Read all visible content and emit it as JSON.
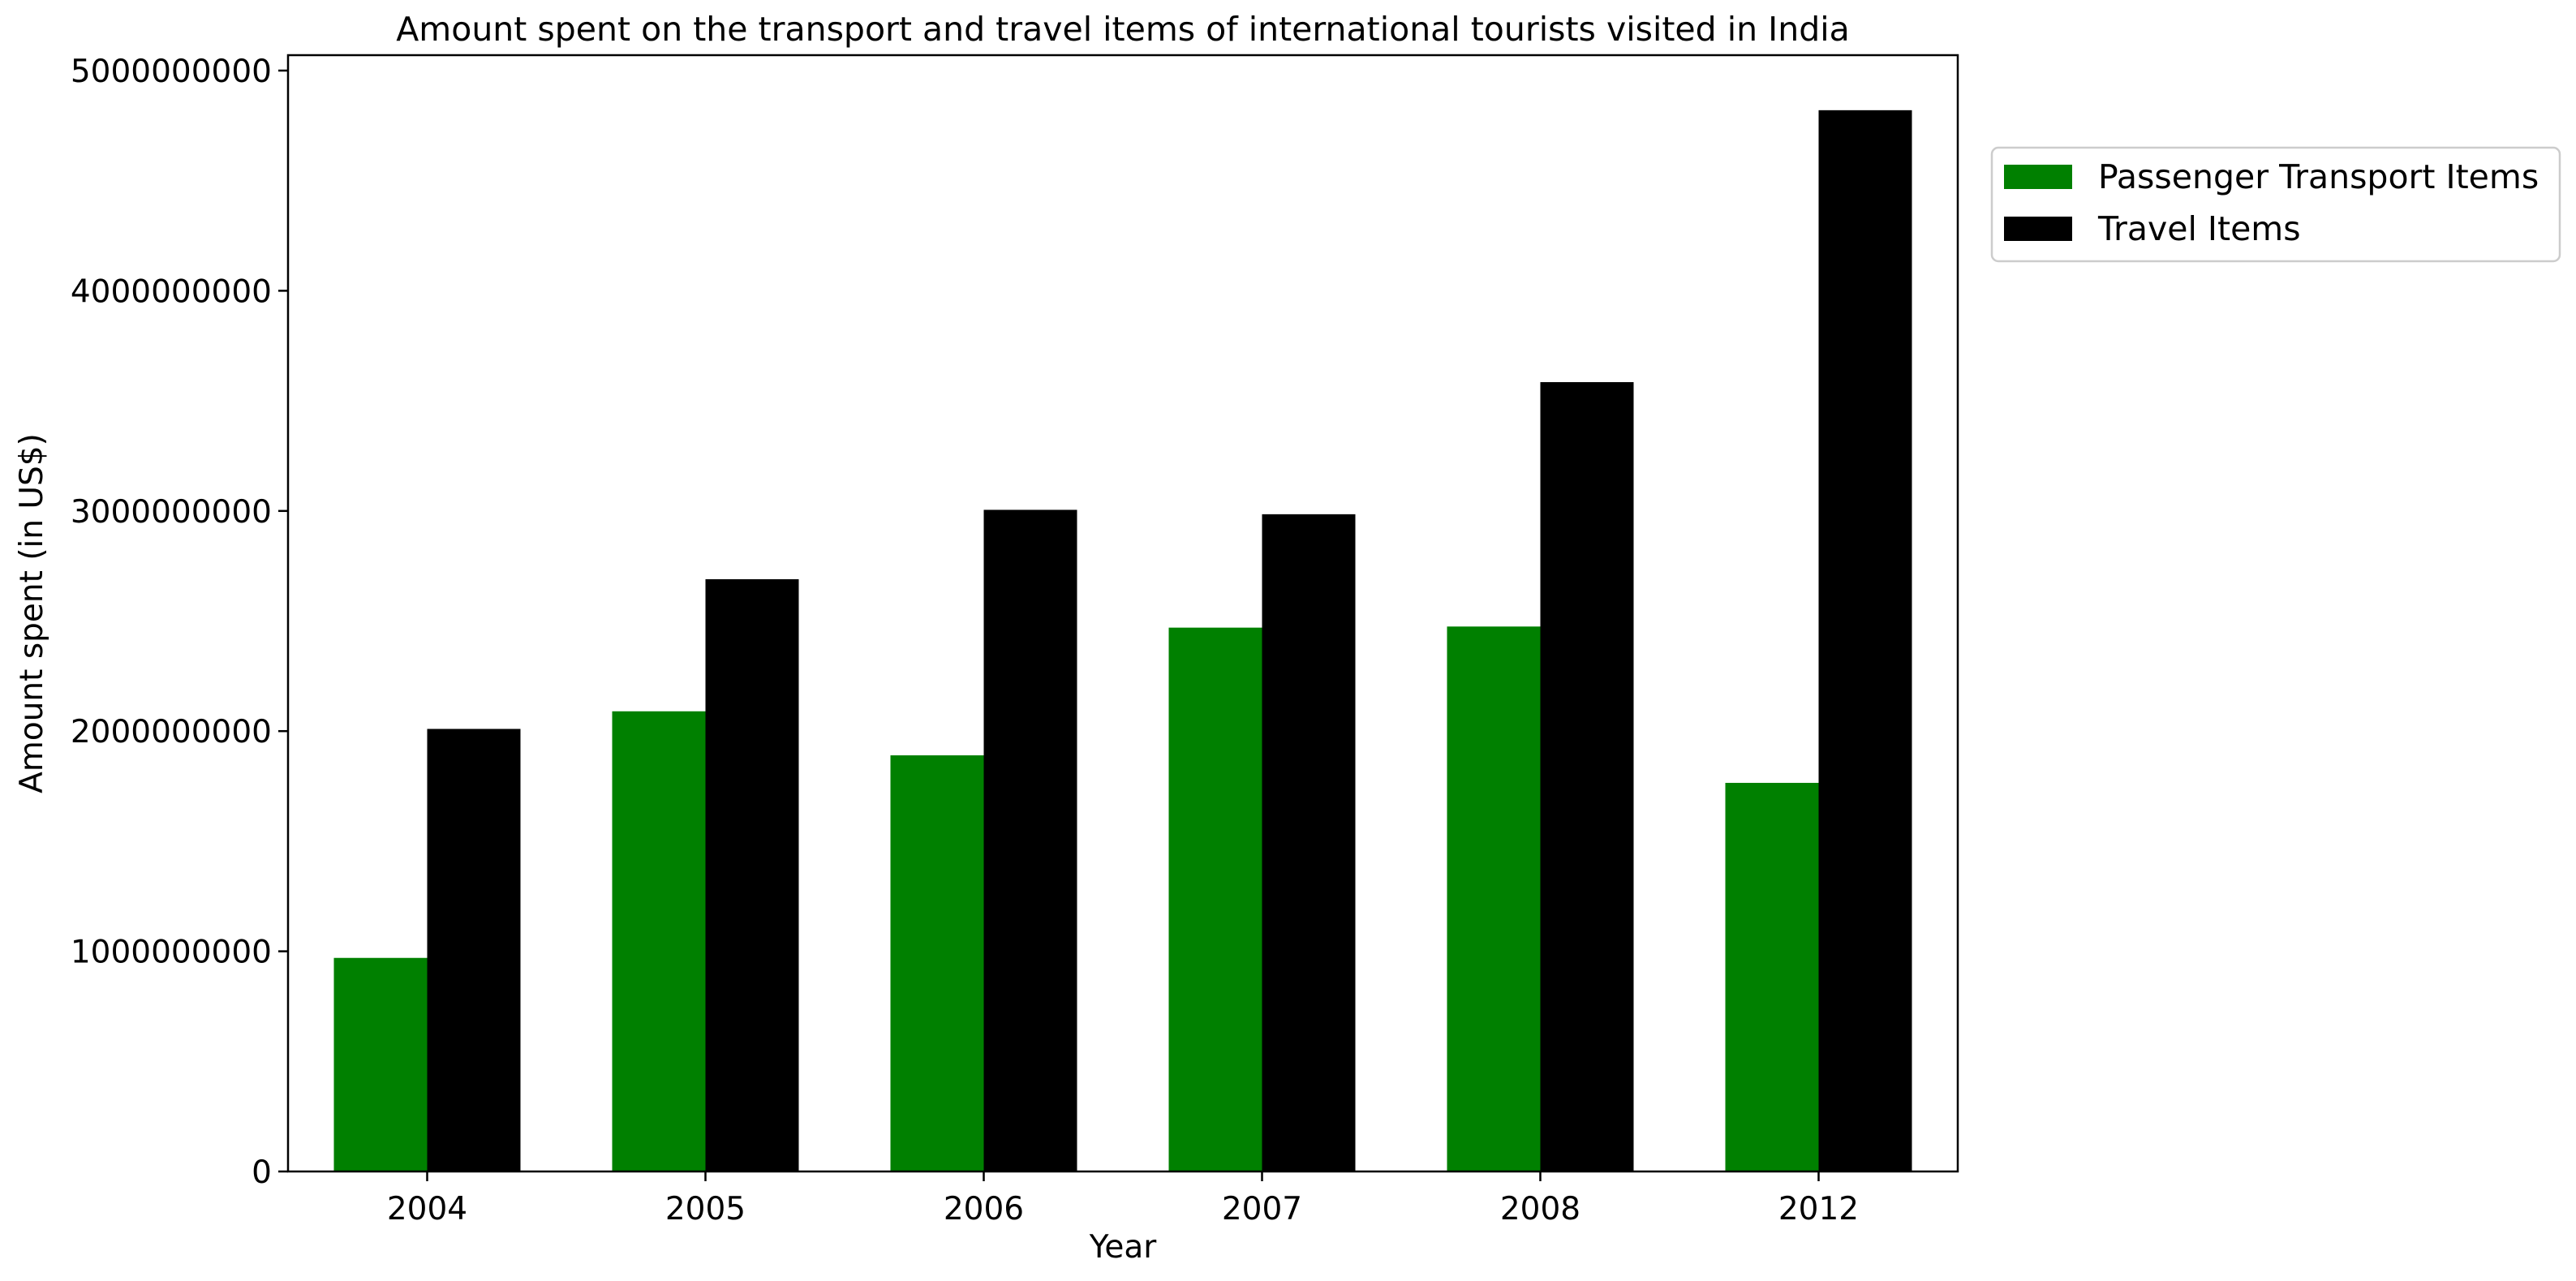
{
  "chart_data": {
    "type": "bar",
    "title": "Amount spent on the transport and travel items of international tourists visited in India",
    "xlabel": "Year",
    "ylabel": "Amount spent (in US$)",
    "categories": [
      "2004",
      "2005",
      "2006",
      "2007",
      "2008",
      "2012"
    ],
    "series": [
      {
        "name": "Passenger Transport Items",
        "color": "#008000",
        "values": [
          970000000,
          2090000000,
          1890000000,
          2470000000,
          2475000000,
          1765000000
        ]
      },
      {
        "name": "Travel Items",
        "color": "#000000",
        "values": [
          2010000000,
          2690000000,
          3005000000,
          2985000000,
          3585000000,
          4820000000
        ]
      }
    ],
    "ylim": [
      0,
      5070000000
    ],
    "yticks": [
      0,
      1000000000,
      2000000000,
      3000000000,
      4000000000,
      5000000000
    ],
    "ytick_labels": [
      "0",
      "1000000000",
      "2000000000",
      "3000000000",
      "4000000000",
      "5000000000"
    ],
    "grid": false,
    "legend_position": "outside-top-right"
  }
}
